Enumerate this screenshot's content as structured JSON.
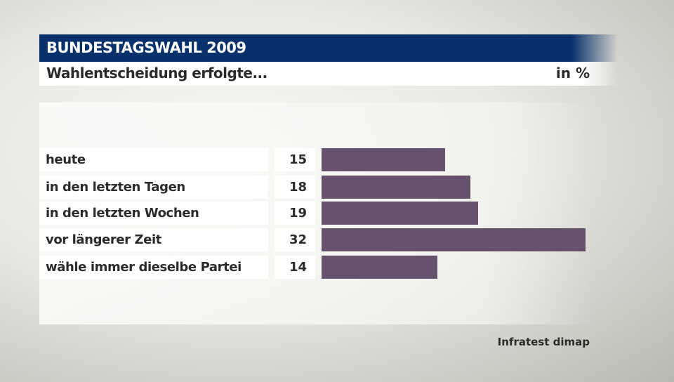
{
  "header": {
    "title": "BUNDESTAGSWAHL 2009"
  },
  "subtitle": {
    "text": "Wahlentscheidung erfolgte...",
    "unit": "in %"
  },
  "chart_data": {
    "type": "bar",
    "orientation": "horizontal",
    "title": "Wahlentscheidung erfolgte...",
    "unit": "in %",
    "categories": [
      "heute",
      "in den letzten Tagen",
      "in den letzten Wochen",
      "vor längerer Zeit",
      "wähle immer dieselbe Partei"
    ],
    "values": [
      15,
      18,
      19,
      32,
      14
    ],
    "value_labels": [
      "15",
      "18",
      "19",
      "32",
      "14"
    ],
    "bar_color": "#67526e",
    "grid": false
  },
  "source": "Infratest dimap",
  "colors": {
    "header": "#08306b",
    "bar": "#67526e"
  }
}
